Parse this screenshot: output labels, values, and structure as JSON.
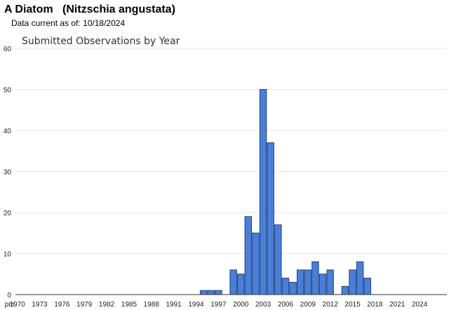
{
  "header": {
    "species_common": "A Diatom",
    "species_scientific": "(Nitzschia angustata)",
    "data_current_label": "Data current as of:",
    "data_current_date": "10/18/2024"
  },
  "colors": {
    "bar_fill": "#4a7fd9",
    "bar_stroke": "#1f3f7a",
    "grid": "#e6e6e6",
    "axis": "#333333"
  },
  "chart_data": {
    "type": "bar",
    "title": "Submitted Observations by Year",
    "xlabel": "",
    "ylabel": "",
    "ylim": [
      0,
      60
    ],
    "yticks": [
      0,
      10,
      20,
      30,
      40,
      50,
      60
    ],
    "grid": true,
    "legend": "none",
    "categories": [
      "pre",
      "1970",
      "1971",
      "1972",
      "1973",
      "1974",
      "1975",
      "1976",
      "1977",
      "1978",
      "1979",
      "1980",
      "1981",
      "1982",
      "1983",
      "1984",
      "1985",
      "1986",
      "1987",
      "1988",
      "1989",
      "1990",
      "1991",
      "1992",
      "1993",
      "1994",
      "1995",
      "1996",
      "1997",
      "1998",
      "1999",
      "2000",
      "2001",
      "2002",
      "2003",
      "2004",
      "2005",
      "2006",
      "2007",
      "2008",
      "2009",
      "2010",
      "2011",
      "2012",
      "2013",
      "2014",
      "2015",
      "2016",
      "2017",
      "2018",
      "2019",
      "2020",
      "2021",
      "2022",
      "2023",
      "2024"
    ],
    "values": [
      0,
      0,
      0,
      0,
      0,
      0,
      0,
      0,
      0,
      0,
      0,
      0,
      0,
      0,
      0,
      0,
      0,
      0,
      0,
      0,
      0,
      0,
      0,
      0,
      0,
      0,
      1,
      1,
      1,
      0,
      6,
      5,
      19,
      15,
      50,
      37,
      17,
      4,
      3,
      6,
      6,
      8,
      5,
      6,
      0,
      2,
      6,
      8,
      4,
      0,
      0,
      0,
      0,
      0,
      0,
      0
    ],
    "xtick_labels": [
      "pre",
      "1970",
      "1973",
      "1976",
      "1979",
      "1982",
      "1985",
      "1988",
      "1991",
      "1994",
      "1997",
      "2000",
      "2003",
      "2006",
      "2009",
      "2012",
      "2015",
      "2018",
      "2021",
      "2024"
    ]
  }
}
